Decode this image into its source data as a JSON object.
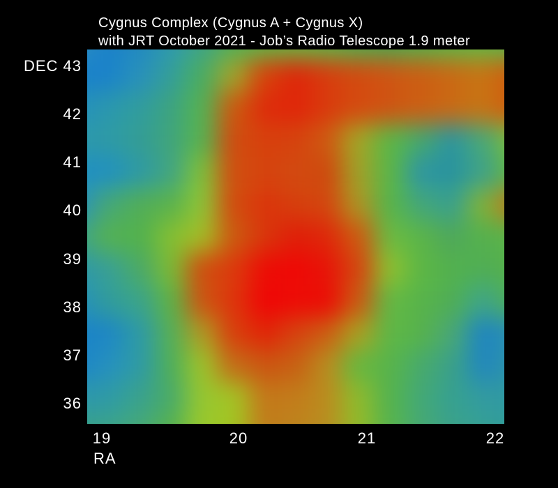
{
  "title": {
    "line1": "Cygnus Complex (Cygnus A + Cygnus X)",
    "line2": "with JRT October 2021 - Job’s Radio Telescope 1.9 meter"
  },
  "axes": {
    "dec_prefix_label": "DEC",
    "dec_ticks": [
      "43",
      "42",
      "41",
      "40",
      "39",
      "38",
      "37",
      "36"
    ],
    "ra_label": "RA",
    "ra_ticks": [
      "19",
      "20",
      "21",
      "22"
    ]
  },
  "colors": {
    "background": "#000000",
    "text": "#ffffff",
    "cold_low": "#1a81cb",
    "mid": "#55b14e",
    "hot_high": "#f00606"
  },
  "chart_data": {
    "type": "heatmap",
    "title": "Cygnus Complex (Cygnus A + Cygnus X)",
    "subtitle": "with JRT October 2021 - Job’s Radio Telescope 1.9 meter",
    "xlabel": "RA",
    "ylabel": "DEC",
    "x_ticks": [
      19,
      20,
      21,
      22
    ],
    "y_ticks": [
      43,
      42,
      41,
      40,
      39,
      38,
      37,
      36
    ],
    "x_range_hours": [
      18.9,
      22.1
    ],
    "y_range_degrees": [
      35.6,
      43.4
    ],
    "legend": "no colorbar shown; blue = low radio brightness, green = mid, red = high",
    "grid_cols": 15,
    "grid_rows": 13,
    "grid_order": "rows top (DEC ~43.2) to bottom (DEC ~35.8), columns left (RA ~19.0) to right (RA ~22.1)",
    "grid_colors": [
      [
        "#2b8dc3",
        "#1a81cb",
        "#2289c2",
        "#2f9ab0",
        "#3fa488",
        "#52b057",
        "#5fb747",
        "#66b943",
        "#5fb647",
        "#52ae4e",
        "#4ea84f",
        "#55b04b",
        "#5eb647",
        "#62b845",
        "#5bb34a"
      ],
      [
        "#1a80cb",
        "#1b82ca",
        "#2990bb",
        "#349e99",
        "#4aac62",
        "#a0a42c",
        "#d8420c",
        "#e0260a",
        "#d93b0e",
        "#d44a10",
        "#d05413",
        "#cd5d13",
        "#cb6814",
        "#c97314",
        "#d15a0e"
      ],
      [
        "#2590bd",
        "#2b97ae",
        "#319c9e",
        "#3da380",
        "#55b153",
        "#cc5a10",
        "#df2b0b",
        "#e1250a",
        "#da390d",
        "#d54a10",
        "#d05312",
        "#cd5e13",
        "#ca6914",
        "#c87314",
        "#d15b0e"
      ],
      [
        "#2c98ac",
        "#2e9aa6",
        "#349d95",
        "#40a57c",
        "#58b250",
        "#d04c10",
        "#d8400d",
        "#d6430e",
        "#cf5a12",
        "#a4a626",
        "#5cb746",
        "#46a86d",
        "#2d95a0",
        "#49a878",
        "#7ebc3a"
      ],
      [
        "#2190c2",
        "#2291bf",
        "#2f9aa4",
        "#42a681",
        "#7fc03a",
        "#d14f10",
        "#d6430e",
        "#d34a10",
        "#cf4a0e",
        "#a0a228",
        "#5cb647",
        "#2f97a2",
        "#28939f",
        "#3fa28a",
        "#62b845"
      ],
      [
        "#2b92bb",
        "#46a876",
        "#52ae58",
        "#5bb34c",
        "#8ec437",
        "#d24c0f",
        "#dc350c",
        "#d63f0d",
        "#d4470f",
        "#ad9524",
        "#58b44a",
        "#44a779",
        "#3aa18d",
        "#7fb33a",
        "#c0761b"
      ],
      [
        "#3fa487",
        "#55b153",
        "#52b14d",
        "#84c033",
        "#a4bc26",
        "#cc5a10",
        "#d9360c",
        "#e01f09",
        "#df280a",
        "#cf5a11",
        "#6cba41",
        "#5bb549",
        "#4fa85a",
        "#55b14e",
        "#5cb349"
      ],
      [
        "#2e97a9",
        "#39a095",
        "#4caa66",
        "#7cbb35",
        "#cf4f10",
        "#dc3a0d",
        "#ed0d06",
        "#f00806",
        "#e81408",
        "#d54510",
        "#8fc02f",
        "#5db745",
        "#53b14e",
        "#50ae54",
        "#57b14c"
      ],
      [
        "#2590bc",
        "#319c9c",
        "#3ba48a",
        "#5eb347",
        "#cc5612",
        "#de350c",
        "#f00606",
        "#ee0c06",
        "#ec0d06",
        "#cc5a12",
        "#64b844",
        "#58b44a",
        "#50ae55",
        "#3fa687",
        "#4fae58"
      ],
      [
        "#1a82c9",
        "#1e87c5",
        "#2e9aa6",
        "#55b057",
        "#ae9b24",
        "#d8400d",
        "#e12508",
        "#d64310",
        "#cc5f13",
        "#aaa122",
        "#5fb746",
        "#57b24c",
        "#4aa875",
        "#1f85c0",
        "#2b90b2"
      ],
      [
        "#1c84c8",
        "#2690bf",
        "#2f9aa5",
        "#4fae5a",
        "#9cc32c",
        "#c46c18",
        "#cc5512",
        "#c86013",
        "#b98c20",
        "#68b73f",
        "#58b34b",
        "#48aa6c",
        "#3ba089",
        "#2287bd",
        "#2d93aa"
      ],
      [
        "#2d97ac",
        "#2f9aa6",
        "#3aa18d",
        "#4aab68",
        "#95c631",
        "#a4c325",
        "#c4781a",
        "#c37c1b",
        "#bb8c1f",
        "#8fba2d",
        "#55b24e",
        "#44a876",
        "#37a090",
        "#339aa0",
        "#2f99a4"
      ],
      [
        "#38a089",
        "#3ca389",
        "#46a977",
        "#57b14e",
        "#9bc92c",
        "#a3c521",
        "#c17d1c",
        "#bf831d",
        "#b98e21",
        "#94bb29",
        "#58b44c",
        "#46a973",
        "#3ba18a",
        "#35a095",
        "#319c9d"
      ]
    ],
    "features": [
      {
        "label": "peak emission (Cygnus core)",
        "ra_h": 20.4,
        "dec_deg": 38.4,
        "appearance": "bright red maximum"
      },
      {
        "label": "warm ridge along DEC ~42",
        "ra_h_span": [
          20.1,
          22.1
        ],
        "dec_deg": 42.0,
        "appearance": "red-orange band"
      },
      {
        "label": "warm column linking ridge and peak",
        "ra_h": 20.5,
        "dec_deg_span": [
          38.4,
          42.2
        ],
        "appearance": "red-orange column"
      },
      {
        "label": "cold spot",
        "ra_h": 21.5,
        "dec_deg": 40.8,
        "appearance": "teal blob"
      },
      {
        "label": "cold spot",
        "ra_h": 21.9,
        "dec_deg": 37.4,
        "appearance": "blue blob"
      },
      {
        "label": "cold region",
        "ra_h": 19.2,
        "dec_deg": 42.9,
        "appearance": "blue"
      },
      {
        "label": "cold region",
        "ra_h": 19.1,
        "dec_deg": 40.1,
        "appearance": "blue"
      },
      {
        "label": "cold region",
        "ra_h": 19.2,
        "dec_deg": 37.4,
        "appearance": "blue"
      },
      {
        "label": "warm patch at right edge",
        "ra_h": 22.0,
        "dec_deg": 40.0,
        "appearance": "orange"
      }
    ]
  }
}
